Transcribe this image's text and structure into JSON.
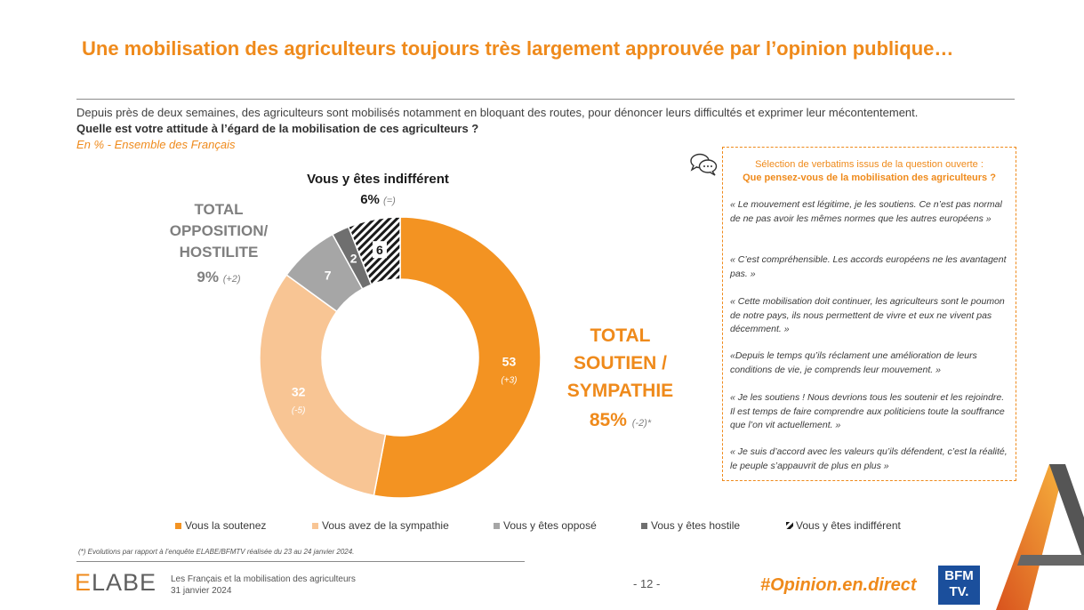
{
  "title": "Une mobilisation des agriculteurs toujours très largement approuvée par l’opinion publique…",
  "intro": "Depuis près de deux semaines, des agriculteurs sont mobilisés notamment en bloquant des routes, pour dénoncer leurs difficultés et exprimer leur mécontentement.",
  "question": "Quelle est votre attitude à l’égard de la mobilisation de ces agriculteurs ?",
  "base": "En % - Ensemble des Français",
  "labels": {
    "indifferent_title": "Vous y êtes indifférent",
    "indifferent_value": "6%",
    "indifferent_change": "(=)",
    "opposition_line1": "TOTAL",
    "opposition_line2": "OPPOSITION/",
    "opposition_line3": "HOSTILITE",
    "opposition_value": "9%",
    "opposition_change": "(+2)",
    "soutien_line1": "TOTAL",
    "soutien_line2": "SOUTIEN /",
    "soutien_line3": "SYMPATHIE",
    "soutien_value": "85%",
    "soutien_change": "(-2)*"
  },
  "chart_data": {
    "type": "pie",
    "subtype": "donut",
    "title": "Quelle est votre attitude à l’égard de la mobilisation de ces agriculteurs ?",
    "unit": "%",
    "categories": [
      "Vous la soutenez",
      "Vous avez de la sympathie",
      "Vous y êtes opposé",
      "Vous y êtes hostile",
      "Vous y êtes indifférent"
    ],
    "values": [
      53,
      32,
      7,
      2,
      6
    ],
    "changes": [
      "(+3)",
      "(-5)",
      "",
      "",
      ""
    ],
    "colors": [
      "#f39322",
      "#f8c594",
      "#a6a6a6",
      "#6f6f6f",
      "hatch"
    ],
    "legend_position": "bottom"
  },
  "verbatims": {
    "heading_line1": "Sélection de verbatims issus de la question ouverte :",
    "heading_line2": "Que pensez-vous de la mobilisation des agriculteurs ?",
    "quotes": [
      "« Le mouvement est légitime, je les soutiens. Ce n’est pas normal de ne pas avoir les mêmes normes que les autres européens »",
      "« C’est compréhensible. Les accords européens ne les avantagent pas. »",
      "« Cette mobilisation doit continuer, les agriculteurs sont le poumon de notre pays, ils nous permettent de vivre et eux ne vivent pas décemment. »",
      "«Depuis le temps qu’ils réclament une amélioration de leurs conditions de vie, je comprends leur mouvement. »",
      "« Je les soutiens ! Nous devrions tous les soutenir et les rejoindre. Il est temps de faire comprendre aux politiciens toute la souffrance que l’on vit actuellement. »",
      "« Je suis d’accord avec les valeurs qu’ils défendent, c’est la réalité, le peuple s’appauvrit de plus en plus »"
    ]
  },
  "footnote": "(*) Evolutions par rapport à l’enquête ELABE/BFMTV réalisée du 23 au 24 janvier 2024.",
  "footer": {
    "logo_left": "E",
    "logo_right": "LABE",
    "study_line1": "Les Français et la mobilisation des agriculteurs",
    "study_line2": "31 janvier 2024",
    "page": "- 12 -",
    "hashtag": "#Opinion.en.direct",
    "bfm_line1": "BFM",
    "bfm_line2": "TV."
  }
}
